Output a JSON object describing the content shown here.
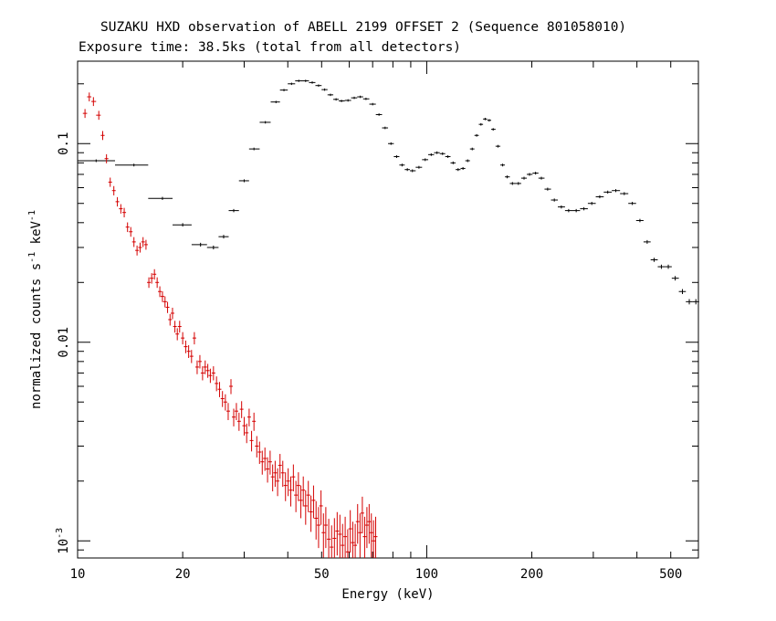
{
  "title": "SUZAKU HXD observation of ABELL 2199 OFFSET 2 (Sequence 801058010)",
  "subtitle": "Exposure time: 38.5ks (total from all detectors)",
  "chart_data": {
    "type": "scatter",
    "title": "SUZAKU HXD observation of ABELL 2199 OFFSET 2 (Sequence 801058010)",
    "subtitle": "Exposure time: 38.5ks (total from all detectors)",
    "xlabel": "Energy (keV)",
    "ylabel_main": "normalized counts s",
    "ylabel_exp1": "-1",
    "ylabel_mid": " keV",
    "ylabel_exp2": "-1",
    "x_scale": "log",
    "y_scale": "log",
    "xlim": [
      10,
      600
    ],
    "ylim": [
      0.00082,
      0.26
    ],
    "x_ticks": [
      {
        "v": 10,
        "label": "10"
      },
      {
        "v": 20,
        "label": "20"
      },
      {
        "v": 50,
        "label": "50"
      },
      {
        "v": 100,
        "label": "100"
      },
      {
        "v": 200,
        "label": "200"
      },
      {
        "v": 500,
        "label": "500"
      }
    ],
    "y_ticks": [
      {
        "v": 0.1,
        "label": "0.1"
      },
      {
        "v": 0.01,
        "label": "0.01"
      }
    ],
    "y_ticks_exp": [
      {
        "v": 0.001,
        "base": "10",
        "exp": "-3"
      }
    ],
    "grid": false,
    "series": [
      {
        "color": "#000000",
        "points": [
          [
            11.3,
            0.082
          ],
          [
            14.5,
            0.078
          ],
          [
            17.5,
            0.053
          ],
          [
            20.0,
            0.039
          ],
          [
            22.5,
            0.031
          ],
          [
            24.5,
            0.03
          ],
          [
            26.2,
            0.034
          ],
          [
            28.0,
            0.046
          ],
          [
            30.0,
            0.065
          ],
          [
            32.0,
            0.094
          ],
          [
            34.5,
            0.128
          ],
          [
            37.0,
            0.162
          ],
          [
            39.0,
            0.186
          ],
          [
            41.0,
            0.2
          ],
          [
            43.0,
            0.207
          ],
          [
            45.0,
            0.207
          ],
          [
            47.0,
            0.203
          ],
          [
            49.0,
            0.196
          ],
          [
            51.0,
            0.187
          ],
          [
            53.0,
            0.176
          ],
          [
            55.0,
            0.167
          ],
          [
            57.0,
            0.164
          ],
          [
            59.5,
            0.165
          ],
          [
            62.0,
            0.17
          ],
          [
            64.5,
            0.172
          ],
          [
            67.0,
            0.168
          ],
          [
            70.0,
            0.158
          ],
          [
            73.0,
            0.14
          ],
          [
            76.0,
            0.12
          ],
          [
            79.0,
            0.1
          ],
          [
            82.0,
            0.086
          ],
          [
            85.0,
            0.078
          ],
          [
            88.0,
            0.074
          ],
          [
            91.0,
            0.073
          ],
          [
            95.0,
            0.076
          ],
          [
            99.0,
            0.083
          ],
          [
            103.0,
            0.088
          ],
          [
            107.0,
            0.09
          ],
          [
            111.0,
            0.089
          ],
          [
            115.0,
            0.086
          ],
          [
            119.0,
            0.08
          ],
          [
            123.0,
            0.074
          ],
          [
            127.0,
            0.075
          ],
          [
            131.0,
            0.082
          ],
          [
            135.0,
            0.094
          ],
          [
            139.0,
            0.11
          ],
          [
            143.0,
            0.125
          ],
          [
            147.0,
            0.133
          ],
          [
            151.0,
            0.131
          ],
          [
            155.0,
            0.118
          ],
          [
            160.0,
            0.097
          ],
          [
            165.0,
            0.078
          ],
          [
            170.0,
            0.068
          ],
          [
            176.0,
            0.063
          ],
          [
            183.0,
            0.063
          ],
          [
            190.0,
            0.067
          ],
          [
            197.0,
            0.07
          ],
          [
            205.0,
            0.071
          ],
          [
            213.0,
            0.067
          ],
          [
            222.0,
            0.059
          ],
          [
            232.0,
            0.052
          ],
          [
            243.0,
            0.048
          ],
          [
            255.0,
            0.046
          ],
          [
            268.0,
            0.046
          ],
          [
            282.0,
            0.047
          ],
          [
            297.0,
            0.05
          ],
          [
            313.0,
            0.054
          ],
          [
            330.0,
            0.057
          ],
          [
            348.0,
            0.058
          ],
          [
            368.0,
            0.056
          ],
          [
            388.0,
            0.05
          ],
          [
            408.0,
            0.041
          ],
          [
            428.0,
            0.032
          ],
          [
            448.0,
            0.026
          ],
          [
            470.0,
            0.024
          ],
          [
            492.0,
            0.024
          ],
          [
            515.0,
            0.021
          ],
          [
            540.0,
            0.018
          ],
          [
            565.0,
            0.016
          ],
          [
            590.0,
            0.016
          ]
        ]
      },
      {
        "color": "#d40000",
        "points": [
          [
            10.5,
            0.142
          ],
          [
            10.8,
            0.172
          ],
          [
            11.1,
            0.163
          ],
          [
            11.5,
            0.139
          ],
          [
            11.8,
            0.11
          ],
          [
            12.1,
            0.084
          ],
          [
            12.4,
            0.064
          ],
          [
            12.7,
            0.058
          ],
          [
            13.0,
            0.051
          ],
          [
            13.3,
            0.047
          ],
          [
            13.6,
            0.045
          ],
          [
            13.9,
            0.038
          ],
          [
            14.2,
            0.036
          ],
          [
            14.5,
            0.032
          ],
          [
            14.8,
            0.029
          ],
          [
            15.1,
            0.03
          ],
          [
            15.4,
            0.032
          ],
          [
            15.7,
            0.031
          ],
          [
            16.0,
            0.02
          ],
          [
            16.3,
            0.021
          ],
          [
            16.6,
            0.022
          ],
          [
            16.9,
            0.02
          ],
          [
            17.2,
            0.018
          ],
          [
            17.5,
            0.017
          ],
          [
            17.8,
            0.016
          ],
          [
            18.1,
            0.015
          ],
          [
            18.4,
            0.013
          ],
          [
            18.7,
            0.014
          ],
          [
            19.0,
            0.012
          ],
          [
            19.3,
            0.011
          ],
          [
            19.6,
            0.012
          ],
          [
            20.0,
            0.0105
          ],
          [
            20.4,
            0.0095
          ],
          [
            20.8,
            0.009
          ],
          [
            21.2,
            0.0085
          ],
          [
            21.6,
            0.0105
          ],
          [
            22.0,
            0.0075
          ],
          [
            22.4,
            0.008
          ],
          [
            22.8,
            0.007
          ],
          [
            23.2,
            0.0075
          ],
          [
            23.6,
            0.0072
          ],
          [
            24.0,
            0.0068
          ],
          [
            24.5,
            0.007
          ],
          [
            25.0,
            0.0062
          ],
          [
            25.5,
            0.0058
          ],
          [
            26.0,
            0.0052
          ],
          [
            26.5,
            0.005
          ],
          [
            27.0,
            0.0045
          ],
          [
            27.5,
            0.006
          ],
          [
            28.0,
            0.0042
          ],
          [
            28.5,
            0.0045
          ],
          [
            29.0,
            0.004
          ],
          [
            29.5,
            0.0046
          ],
          [
            30.0,
            0.0038
          ],
          [
            30.5,
            0.0035
          ],
          [
            31.0,
            0.0042
          ],
          [
            31.5,
            0.0032
          ],
          [
            32.0,
            0.004
          ],
          [
            32.6,
            0.003
          ],
          [
            33.2,
            0.0028
          ],
          [
            33.8,
            0.0025
          ],
          [
            34.4,
            0.0026
          ],
          [
            35.0,
            0.0023
          ],
          [
            35.6,
            0.0025
          ],
          [
            36.2,
            0.0021
          ],
          [
            36.8,
            0.0022
          ],
          [
            37.4,
            0.002
          ],
          [
            38.0,
            0.0024
          ],
          [
            38.7,
            0.0022
          ],
          [
            39.4,
            0.0019
          ],
          [
            40.1,
            0.002
          ],
          [
            40.8,
            0.0018
          ],
          [
            41.5,
            0.0021
          ],
          [
            42.2,
            0.0017
          ],
          [
            42.9,
            0.0019
          ],
          [
            43.6,
            0.0016
          ],
          [
            44.3,
            0.0018
          ],
          [
            45.0,
            0.0015
          ],
          [
            45.8,
            0.0017
          ],
          [
            46.6,
            0.0014
          ],
          [
            47.4,
            0.0016
          ],
          [
            48.2,
            0.0013
          ],
          [
            49.0,
            0.0012
          ],
          [
            49.8,
            0.0015
          ],
          [
            50.6,
            0.0011
          ],
          [
            51.4,
            0.0012
          ],
          [
            52.4,
            0.00102
          ],
          [
            53.4,
            0.00093
          ],
          [
            54.4,
            0.00103
          ],
          [
            55.4,
            0.00112
          ],
          [
            56.4,
            0.00108
          ],
          [
            57.4,
            0.00095
          ],
          [
            58.4,
            0.00105
          ],
          [
            59.4,
            0.00088
          ],
          [
            60.4,
            0.00115
          ],
          [
            61.4,
            0.00098
          ],
          [
            62.4,
            0.00095
          ],
          [
            63.4,
            0.00125
          ],
          [
            64.4,
            0.0011
          ],
          [
            65.4,
            0.00138
          ],
          [
            66.4,
            0.00105
          ],
          [
            67.4,
            0.0012
          ],
          [
            68.4,
            0.00125
          ],
          [
            69.4,
            0.0011
          ],
          [
            70.4,
            0.001
          ],
          [
            71.4,
            0.00105
          ]
        ]
      }
    ]
  }
}
